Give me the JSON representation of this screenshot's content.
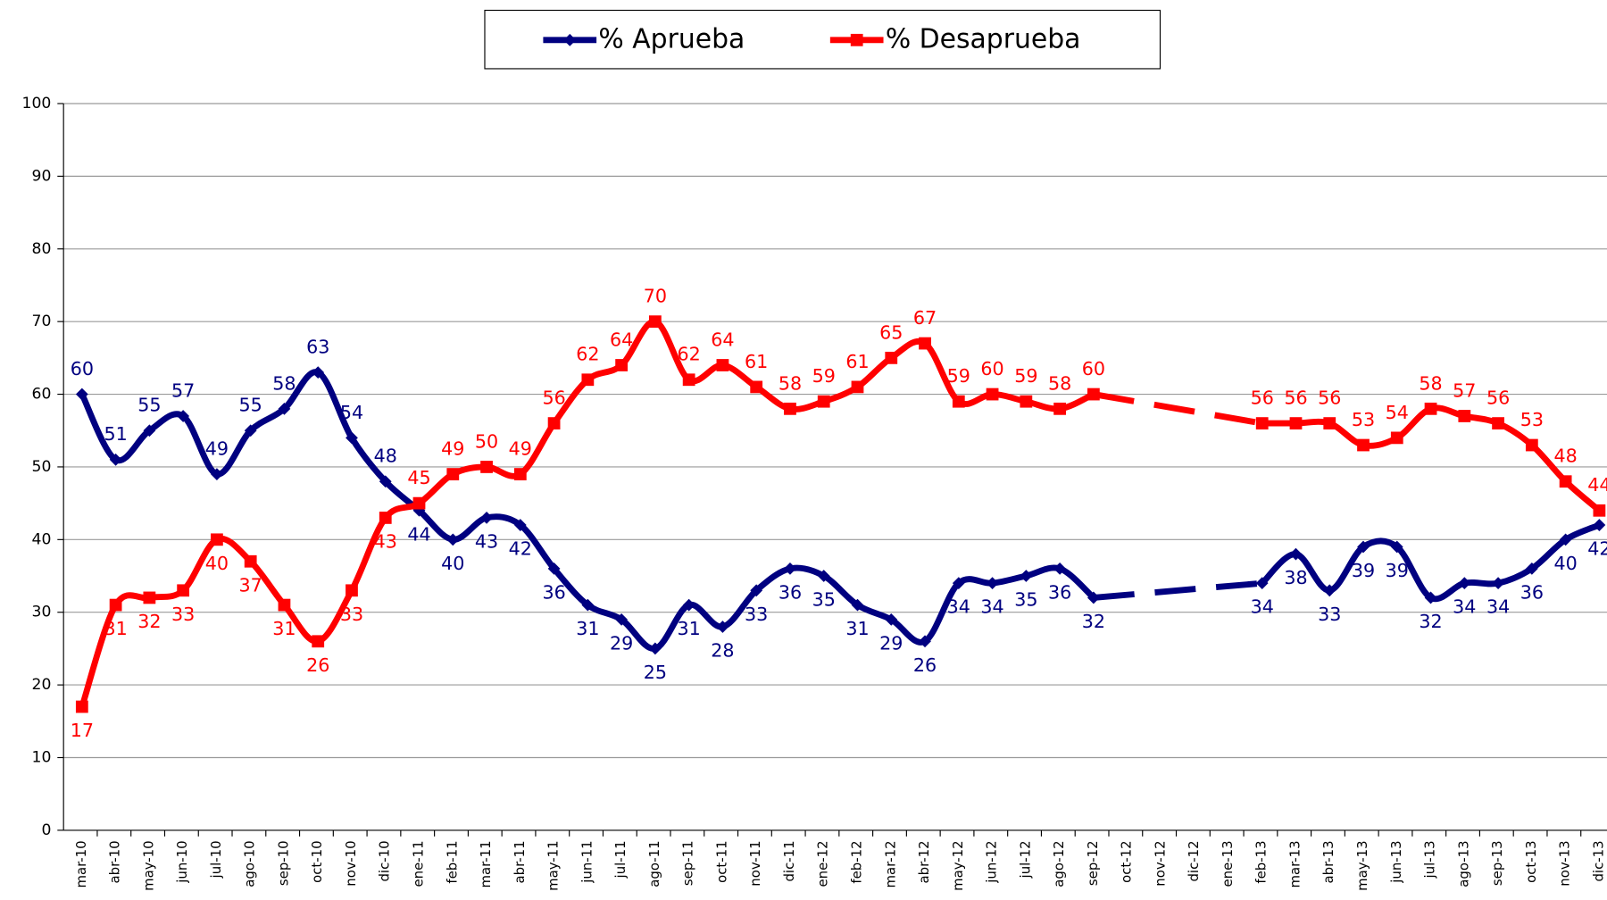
{
  "chart_data": {
    "type": "line",
    "categories": [
      "mar-10",
      "abr-10",
      "may-10",
      "jun-10",
      "jul-10",
      "ago-10",
      "sep-10",
      "oct-10",
      "nov-10",
      "dic-10",
      "ene-11",
      "feb-11",
      "mar-11",
      "abr-11",
      "may-11",
      "jun-11",
      "jul-11",
      "ago-11",
      "sep-11",
      "oct-11",
      "nov-11",
      "dic-11",
      "ene-12",
      "feb-12",
      "mar-12",
      "abr-12",
      "may-12",
      "jun-12",
      "jul-12",
      "ago-12",
      "sep-12",
      "oct-12",
      "nov-12",
      "dic-12",
      "ene-13",
      "feb-13",
      "mar-13",
      "abr-13",
      "may-13",
      "jun-13",
      "jul-13",
      "ago-13",
      "sep-13",
      "oct-13",
      "nov-13",
      "dic-13"
    ],
    "series": [
      {
        "name": "% Aprueba",
        "color": "#000080",
        "marker": "diamond",
        "values": [
          60,
          51,
          55,
          57,
          49,
          55,
          58,
          63,
          54,
          48,
          44,
          40,
          43,
          42,
          36,
          31,
          29,
          25,
          31,
          28,
          33,
          36,
          35,
          31,
          29,
          26,
          34,
          34,
          35,
          36,
          32,
          null,
          null,
          null,
          null,
          34,
          38,
          33,
          39,
          39,
          32,
          34,
          34,
          36,
          40,
          42
        ]
      },
      {
        "name": "% Desaprueba",
        "color": "#ff0000",
        "marker": "square",
        "values": [
          17,
          31,
          32,
          33,
          40,
          37,
          31,
          26,
          33,
          43,
          45,
          49,
          50,
          49,
          56,
          62,
          64,
          70,
          62,
          64,
          61,
          58,
          59,
          61,
          65,
          67,
          59,
          60,
          59,
          58,
          60,
          null,
          null,
          null,
          null,
          56,
          56,
          56,
          53,
          54,
          58,
          57,
          56,
          53,
          48,
          44
        ]
      }
    ],
    "ylim": [
      0,
      100
    ],
    "yticks": [
      0,
      10,
      20,
      30,
      40,
      50,
      60,
      70,
      80,
      90,
      100
    ],
    "grid": true,
    "legend": "top"
  }
}
